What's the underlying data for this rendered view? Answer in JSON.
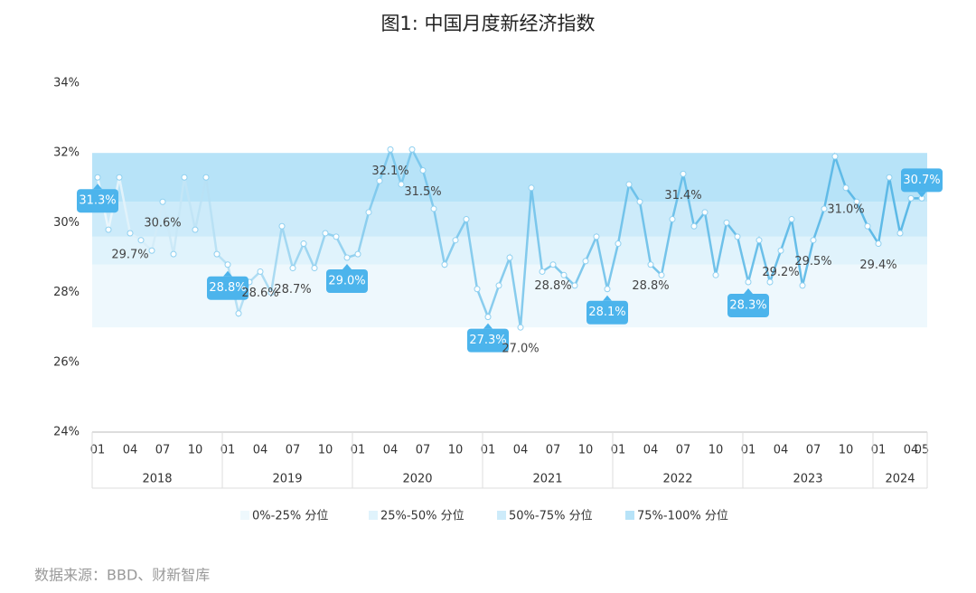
{
  "title": "图1: 中国月度新经济指数",
  "source": "数据来源：BBD、财新智库",
  "chart_data": {
    "type": "line",
    "categories": [
      "01",
      null,
      null,
      "04",
      null,
      null,
      "07",
      null,
      null,
      "10",
      null,
      null,
      "01",
      null,
      null,
      "04",
      null,
      null,
      "07",
      null,
      null,
      "10",
      null,
      null,
      "01",
      null,
      null,
      "04",
      null,
      null,
      "07",
      null,
      null,
      "10",
      null,
      null,
      "01",
      null,
      null,
      "04",
      null,
      null,
      "07",
      null,
      null,
      "10",
      null,
      null,
      "01",
      null,
      null,
      "04",
      null,
      null,
      "07",
      null,
      null,
      "10",
      null,
      null,
      "01",
      null,
      null,
      "04",
      null,
      null,
      "07",
      null,
      null,
      "10",
      null,
      null,
      "01",
      null,
      null,
      "04",
      "05"
    ],
    "years": [
      "2018",
      "2019",
      "2020",
      "2021",
      "2022",
      "2023",
      "2024"
    ],
    "series": [
      {
        "color": "#5ab8e6",
        "start_color": "#f4fafd",
        "marker_color": "#ffffff",
        "values": [
          31.3,
          29.8,
          31.3,
          29.7,
          29.5,
          29.2,
          30.6,
          29.1,
          31.3,
          29.8,
          31.3,
          29.1,
          28.8,
          27.4,
          28.3,
          28.6,
          28.0,
          29.9,
          28.7,
          29.4,
          28.7,
          29.7,
          29.6,
          29.0,
          29.1,
          30.3,
          31.2,
          32.1,
          31.1,
          32.1,
          31.5,
          30.4,
          28.8,
          29.5,
          30.1,
          28.1,
          27.3,
          28.2,
          29.0,
          27.0,
          31.0,
          28.6,
          28.8,
          28.5,
          28.2,
          28.9,
          29.6,
          28.1,
          29.4,
          31.1,
          30.6,
          28.8,
          28.5,
          30.1,
          31.4,
          29.9,
          30.3,
          28.5,
          30.0,
          29.6,
          28.3,
          29.5,
          28.3,
          29.2,
          30.1,
          28.2,
          29.5,
          30.4,
          31.9,
          31.0,
          30.6,
          29.9,
          29.4,
          31.3,
          29.7,
          30.7,
          30.7
        ],
        "value_labels": [
          "31.3%",
          null,
          null,
          "29.7%",
          null,
          null,
          "30.6%",
          null,
          null,
          null,
          null,
          null,
          "28.8%",
          null,
          null,
          "28.6%",
          null,
          null,
          "28.7%",
          null,
          null,
          null,
          null,
          "29.0%",
          null,
          null,
          null,
          "32.1%",
          null,
          null,
          "31.5%",
          null,
          null,
          null,
          null,
          null,
          "27.3%",
          null,
          null,
          "27.0%",
          null,
          null,
          "28.8%",
          null,
          null,
          null,
          null,
          "28.1%",
          null,
          null,
          null,
          "28.8%",
          null,
          null,
          "31.4%",
          null,
          null,
          null,
          null,
          null,
          "28.3%",
          null,
          null,
          "29.2%",
          null,
          null,
          "29.5%",
          null,
          null,
          "31.0%",
          null,
          null,
          "29.4%",
          null,
          null,
          null,
          "30.7%"
        ],
        "highlighted": [
          0,
          12,
          23,
          36,
          47,
          60,
          76
        ],
        "highlight_color": "#4cb4ec"
      }
    ],
    "bands": [
      {
        "name": "0%-25% 分位",
        "from": 27.0,
        "to": 28.8,
        "color": "#eef8fd"
      },
      {
        "name": "25%-50% 分位",
        "from": 28.8,
        "to": 29.6,
        "color": "#e0f3fc"
      },
      {
        "name": "50%-75% 分位",
        "from": 29.6,
        "to": 30.6,
        "color": "#cdebfa"
      },
      {
        "name": "75%-100% 分位",
        "from": 30.6,
        "to": 32.0,
        "color": "#b7e3f8"
      }
    ],
    "ylim": [
      24,
      34
    ],
    "yticks": [
      {
        "value": 24,
        "label": "24%"
      },
      {
        "value": 26,
        "label": "26%"
      },
      {
        "value": 28,
        "label": "28%"
      },
      {
        "value": 30,
        "label": "30%"
      },
      {
        "value": 32,
        "label": "32%"
      },
      {
        "value": 34,
        "label": "34%"
      }
    ],
    "grid": false
  }
}
